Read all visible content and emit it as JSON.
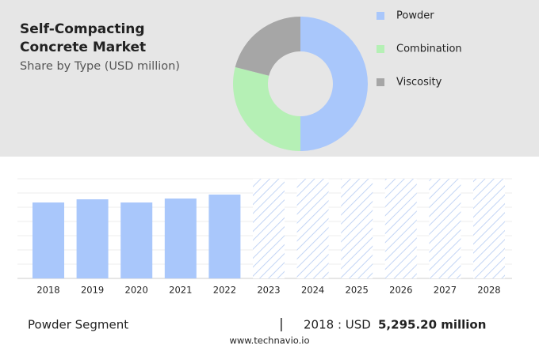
{
  "chart_data": [
    {
      "type": "donut",
      "title": "Self-Compacting Concrete Market",
      "subtitle": "Share by Type (USD million)",
      "series": [
        {
          "name": "Powder",
          "color": "#a9c7fb",
          "values": [
            50
          ]
        },
        {
          "name": "Combination",
          "color": "#b5f0b5",
          "values": [
            29
          ]
        },
        {
          "name": "Viscosity",
          "color": "#a6a6a6",
          "values": [
            21
          ]
        }
      ]
    },
    {
      "type": "bar",
      "categories": [
        "2018",
        "2019",
        "2020",
        "2021",
        "2022",
        "2023",
        "2024",
        "2025",
        "2026",
        "2027",
        "2028"
      ],
      "values": [
        5295.2,
        5516,
        5295,
        5571,
        5847,
        null,
        null,
        null,
        null,
        null,
        null
      ],
      "color": "#a9c7fb"
    }
  ],
  "footer": {
    "segment": "Powder Segment",
    "separator": "|",
    "year_label": "2018 : USD",
    "value": "5,295.20 million",
    "source": "www.technavio.io"
  }
}
